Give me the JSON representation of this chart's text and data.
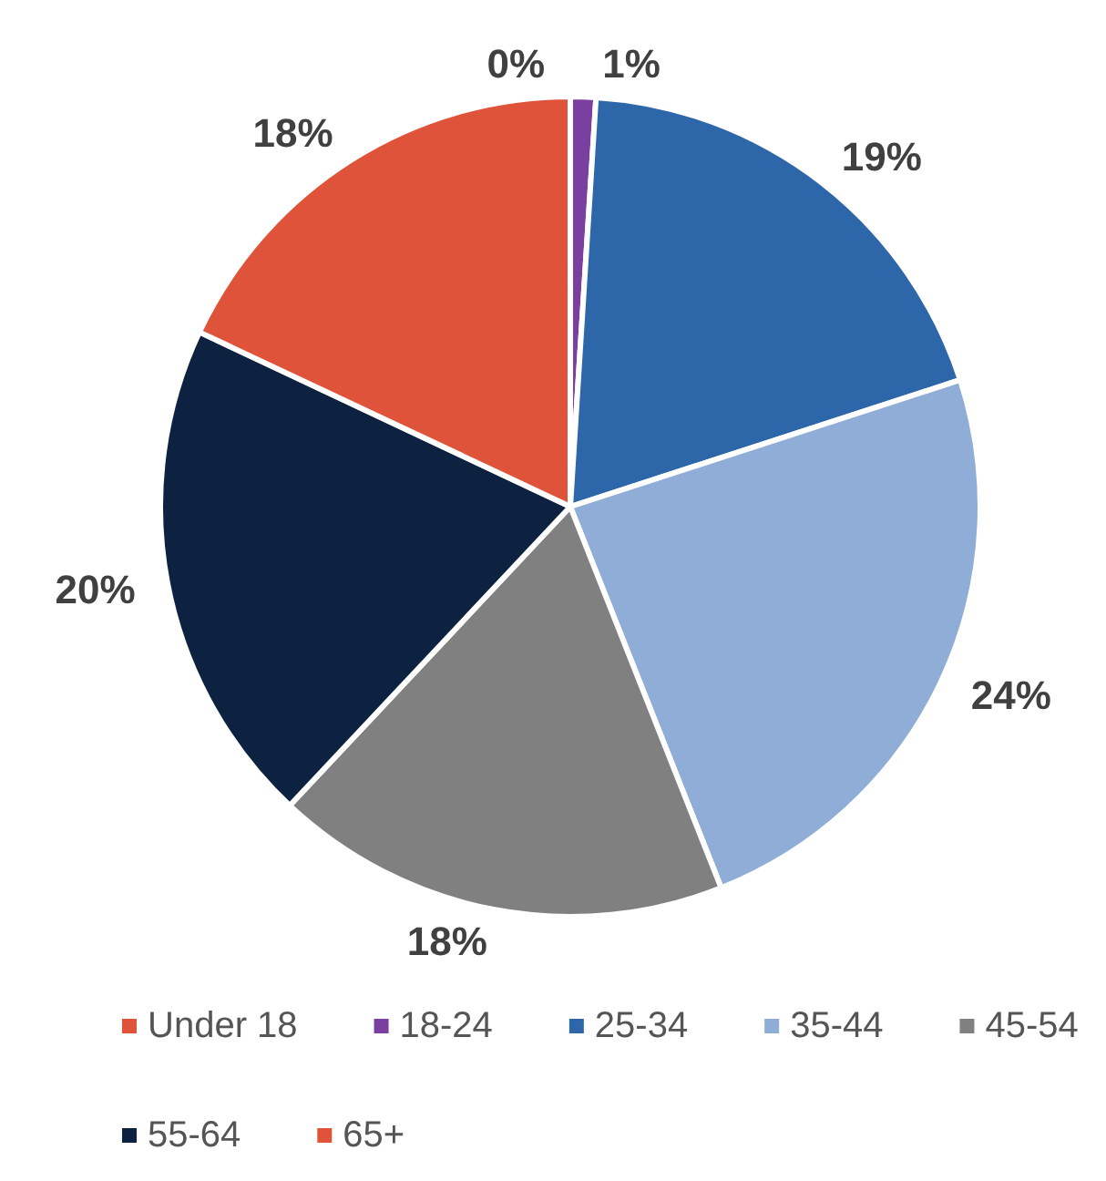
{
  "chart_data": {
    "type": "pie",
    "categories": [
      "Under 18",
      "18-24",
      "25-34",
      "35-44",
      "45-54",
      "55-64",
      "65+"
    ],
    "values": [
      0,
      1,
      19,
      24,
      18,
      20,
      18
    ],
    "colors": [
      "#e0533b",
      "#7b3fa0",
      "#2e67a9",
      "#8fadd6",
      "#808080",
      "#0d2240",
      "#e0533b"
    ],
    "value_labels": [
      "0%",
      "1%",
      "19%",
      "24%",
      "18%",
      "20%",
      "18%"
    ],
    "legend": "bottom"
  }
}
